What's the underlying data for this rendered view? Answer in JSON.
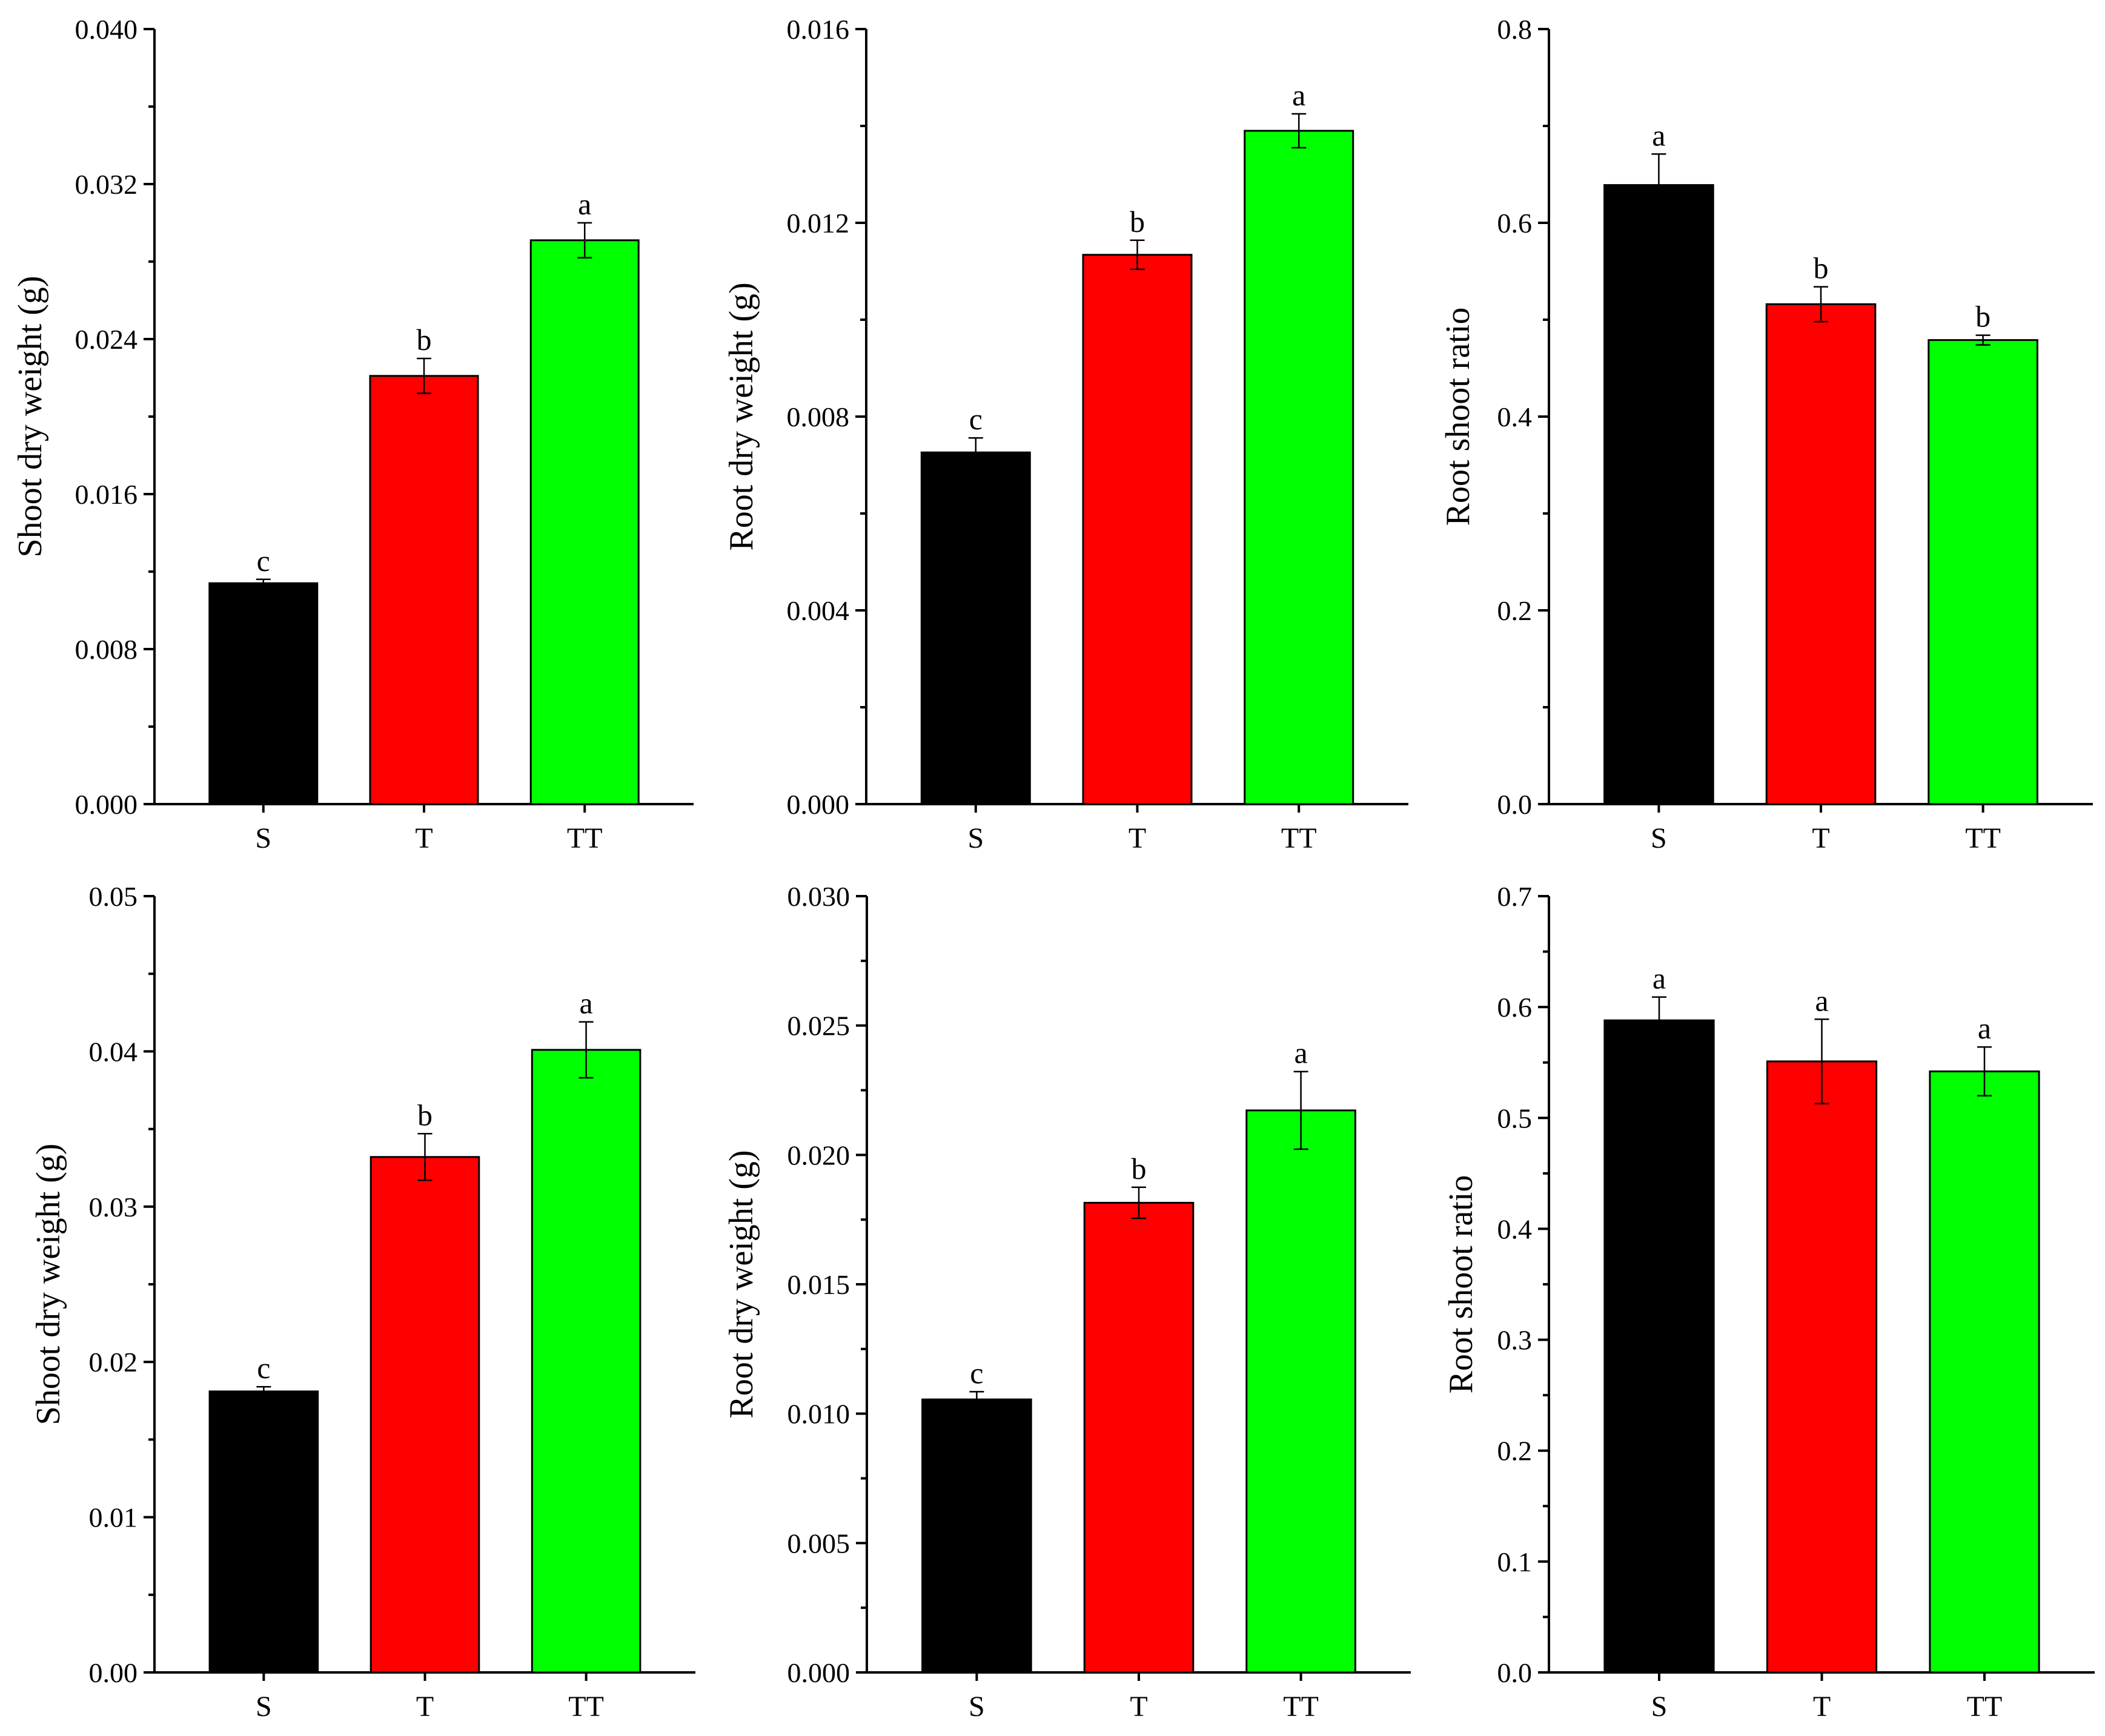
{
  "colors": {
    "S": "#000000",
    "T": "#ff0000",
    "TT": "#00ff00",
    "axis": "#000000",
    "letter": "#000000"
  },
  "chart_data": [
    {
      "type": "bar",
      "categories": [
        "S",
        "T",
        "TT"
      ],
      "values": [
        0.0114,
        0.0221,
        0.0291
      ],
      "errors": [
        0.0002,
        0.0009,
        0.0009
      ],
      "letters": [
        "c",
        "b",
        "a"
      ],
      "ylabel": "Shoot dry weight (g)",
      "ylim": [
        0,
        0.04
      ],
      "yticks": [
        "0.000",
        "0.008",
        "0.016",
        "0.024",
        "0.032",
        "0.040"
      ],
      "minor_ticks": true
    },
    {
      "type": "bar",
      "categories": [
        "S",
        "T",
        "TT"
      ],
      "values": [
        0.00726,
        0.01134,
        0.0139
      ],
      "errors": [
        0.0003,
        0.0003,
        0.00035
      ],
      "letters": [
        "c",
        "b",
        "a"
      ],
      "ylabel": "Root dry weight (g)",
      "ylim": [
        0,
        0.016
      ],
      "yticks": [
        "0.000",
        "0.004",
        "0.008",
        "0.012",
        "0.016"
      ],
      "minor_ticks": true
    },
    {
      "type": "bar",
      "categories": [
        "S",
        "T",
        "TT"
      ],
      "values": [
        0.639,
        0.516,
        0.479
      ],
      "errors": [
        0.032,
        0.018,
        0.005
      ],
      "letters": [
        "a",
        "b",
        "b"
      ],
      "ylabel": "Root shoot ratio",
      "ylim": [
        0,
        0.8
      ],
      "yticks": [
        "0.0",
        "0.2",
        "0.4",
        "0.6",
        "0.8"
      ],
      "minor_ticks": true
    },
    {
      "type": "bar",
      "categories": [
        "S",
        "T",
        "TT"
      ],
      "values": [
        0.0181,
        0.0332,
        0.0401
      ],
      "errors": [
        0.0003,
        0.0015,
        0.0018
      ],
      "letters": [
        "c",
        "b",
        "a"
      ],
      "ylabel": "Shoot dry weight (g)",
      "ylim": [
        0,
        0.05
      ],
      "yticks": [
        "0.00",
        "0.01",
        "0.02",
        "0.03",
        "0.04",
        "0.05"
      ],
      "minor_ticks": true
    },
    {
      "type": "bar",
      "categories": [
        "S",
        "T",
        "TT"
      ],
      "values": [
        0.01055,
        0.01815,
        0.02172
      ],
      "errors": [
        0.0003,
        0.0006,
        0.0015
      ],
      "letters": [
        "c",
        "b",
        "a"
      ],
      "ylabel": "Root dry weight (g)",
      "ylim": [
        0,
        0.03
      ],
      "yticks": [
        "0.000",
        "0.005",
        "0.010",
        "0.015",
        "0.020",
        "0.025",
        "0.030"
      ],
      "minor_ticks": true
    },
    {
      "type": "bar",
      "categories": [
        "S",
        "T",
        "TT"
      ],
      "values": [
        0.588,
        0.551,
        0.542
      ],
      "errors": [
        0.021,
        0.038,
        0.022
      ],
      "letters": [
        "a",
        "a",
        "a"
      ],
      "ylabel": "Root shoot ratio",
      "ylim": [
        0,
        0.7
      ],
      "yticks": [
        "0.0",
        "0.1",
        "0.2",
        "0.3",
        "0.4",
        "0.5",
        "0.6",
        "0.7"
      ],
      "minor_ticks": true
    }
  ]
}
